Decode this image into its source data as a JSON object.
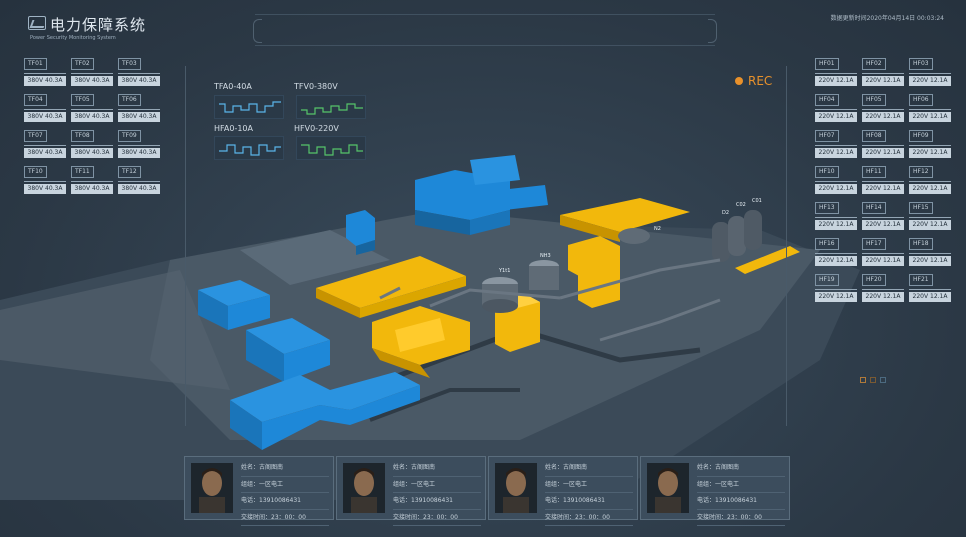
{
  "header": {
    "title": "电力保障系统",
    "subtitle": "Power Security Monitoring System",
    "update_time": "数据更新时间2020年04月14日 00:03:24"
  },
  "left_panel": {
    "cells": [
      {
        "id": "TF01",
        "value": "380V  40.3A"
      },
      {
        "id": "TF02",
        "value": "380V  40.3A"
      },
      {
        "id": "TF03",
        "value": "380V  40.3A"
      },
      {
        "id": "TF04",
        "value": "380V  40.3A"
      },
      {
        "id": "TF05",
        "value": "380V  40.3A"
      },
      {
        "id": "TF06",
        "value": "380V  40.3A"
      },
      {
        "id": "TF07",
        "value": "380V  40.3A"
      },
      {
        "id": "TF08",
        "value": "380V  40.3A"
      },
      {
        "id": "TF09",
        "value": "380V  40.3A"
      },
      {
        "id": "TF10",
        "value": "380V  40.3A"
      },
      {
        "id": "TF11",
        "value": "380V  40.3A"
      },
      {
        "id": "TF12",
        "value": "380V  40.3A"
      }
    ]
  },
  "right_panel": {
    "cells": [
      {
        "id": "HF01",
        "value": "220V  12.1A"
      },
      {
        "id": "HF02",
        "value": "220V  12.1A"
      },
      {
        "id": "HF03",
        "value": "220V  12.1A"
      },
      {
        "id": "HF04",
        "value": "220V  12.1A"
      },
      {
        "id": "HF05",
        "value": "220V  12.1A"
      },
      {
        "id": "HF06",
        "value": "220V  12.1A"
      },
      {
        "id": "HF07",
        "value": "220V  12.1A"
      },
      {
        "id": "HF08",
        "value": "220V  12.1A"
      },
      {
        "id": "HF09",
        "value": "220V  12.1A"
      },
      {
        "id": "HF10",
        "value": "220V  12.1A"
      },
      {
        "id": "HF11",
        "value": "220V  12.1A"
      },
      {
        "id": "HF12",
        "value": "220V  12.1A"
      },
      {
        "id": "HF13",
        "value": "220V  12.1A"
      },
      {
        "id": "HF14",
        "value": "220V  12.1A"
      },
      {
        "id": "HF15",
        "value": "220V  12.1A"
      },
      {
        "id": "HF16",
        "value": "220V  12.1A"
      },
      {
        "id": "HF17",
        "value": "220V  12.1A"
      },
      {
        "id": "HF18",
        "value": "220V  12.1A"
      },
      {
        "id": "HF19",
        "value": "220V  12.1A"
      },
      {
        "id": "HF20",
        "value": "220V  12.1A"
      },
      {
        "id": "HF21",
        "value": "220V  12.1A"
      }
    ]
  },
  "waveforms": [
    {
      "label": "TFA0-40A",
      "color": "#5ab4e8"
    },
    {
      "label": "TFV0-380V",
      "color": "#56c46a"
    },
    {
      "label": "HFA0-10A",
      "color": "#5ab4e8"
    },
    {
      "label": "HFV0-220V",
      "color": "#56c46a"
    }
  ],
  "rec": {
    "label": "REC",
    "color": "#e8912b"
  },
  "scene_labels": [
    "Y1t1",
    "NH3",
    "C02",
    "C01",
    "D2",
    "N2",
    "T1",
    "Y1"
  ],
  "personnel": [
    {
      "name": "姓名：古阁图南",
      "group": "组组：一区电工",
      "phone": "电话：13910086431",
      "shift": "交接时间：23：00：00"
    },
    {
      "name": "姓名：古阁图南",
      "group": "组组：一区电工",
      "phone": "电话：13910086431",
      "shift": "交接时间：23：00：00"
    },
    {
      "name": "姓名：古阁图南",
      "group": "组组：一区电工",
      "phone": "电话：13910086431",
      "shift": "交接时间：23：00：00"
    },
    {
      "name": "姓名：古阁图南",
      "group": "组组：一区电工",
      "phone": "电话：13910086431",
      "shift": "交接时间：23：00：00"
    }
  ],
  "colors": {
    "blue_building": "#1e88d8",
    "yellow_building": "#f2b80c",
    "grey_structure": "#5a6774",
    "accent": "#e8912b"
  }
}
